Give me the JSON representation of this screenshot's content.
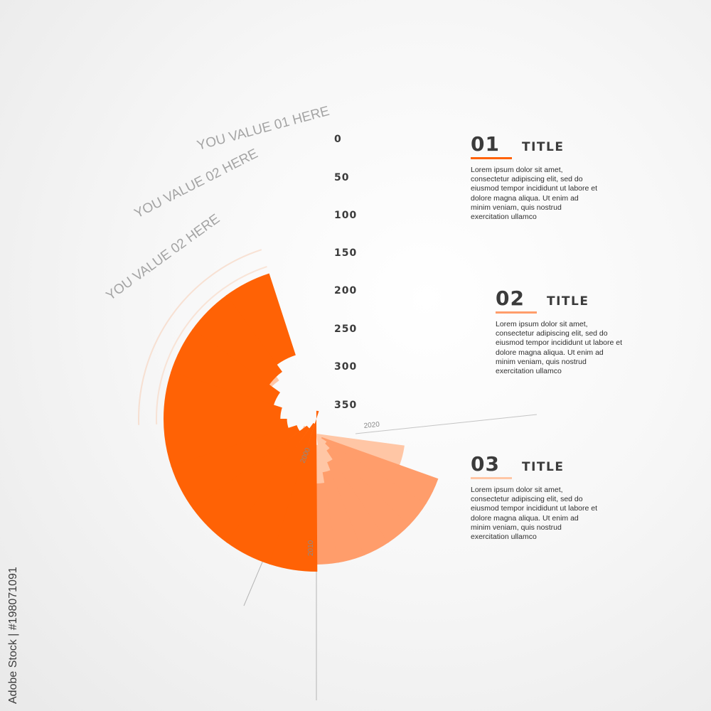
{
  "chart_data": {
    "type": "radial-bar",
    "title": "",
    "axis_ticks": [
      "0",
      "50",
      "100",
      "150",
      "200",
      "250",
      "300",
      "350"
    ],
    "curve_labels": [
      "YOU VALUE 01 HERE",
      "YOU VALUE 02 HERE",
      "YOU VALUE 02 HERE"
    ],
    "year_labels": [
      "2020",
      "2000",
      "2010"
    ],
    "series": [
      {
        "color": "#ff6205",
        "values": [
          0,
          195,
          215,
          245,
          265,
          280,
          300,
          320,
          335,
          365
        ]
      },
      {
        "color": "#ff9d6b",
        "values": [
          25,
          30,
          45,
          70,
          85,
          100,
          110,
          125,
          135,
          140,
          150,
          165,
          175,
          190,
          215,
          235,
          260,
          275,
          290
        ]
      },
      {
        "color": "#ffc6a5",
        "values": [
          60,
          90,
          110,
          145,
          170,
          195,
          220,
          245,
          260
        ]
      }
    ]
  },
  "info_blocks": [
    {
      "number": "01",
      "title": "TITLE",
      "rule_color": "#ff6205",
      "text": "Lorem ipsum dolor sit amet, consectetur adipiscing elit, sed do eiusmod tempor incididunt ut labore et dolore magna aliqua. Ut enim ad minim veniam, quis nostrud exercitation ullamco"
    },
    {
      "number": "02",
      "title": "TITLE",
      "rule_color": "#ff9d6b",
      "text": "Lorem ipsum dolor sit amet, consectetur adipiscing elit, sed do eiusmod tempor incididunt ut labore et dolore magna aliqua. Ut enim ad minim veniam, quis nostrud exercitation ullamco"
    },
    {
      "number": "03",
      "title": "TITLE",
      "rule_color": "#ffc6a5",
      "text": "Lorem ipsum dolor sit amet, consectetur adipiscing elit, sed do eiusmod tempor incididunt ut labore et dolore magna aliqua. Ut enim ad minim veniam, quis nostrud exercitation ullamco"
    }
  ],
  "watermark": "Adobe Stock | #198071091"
}
